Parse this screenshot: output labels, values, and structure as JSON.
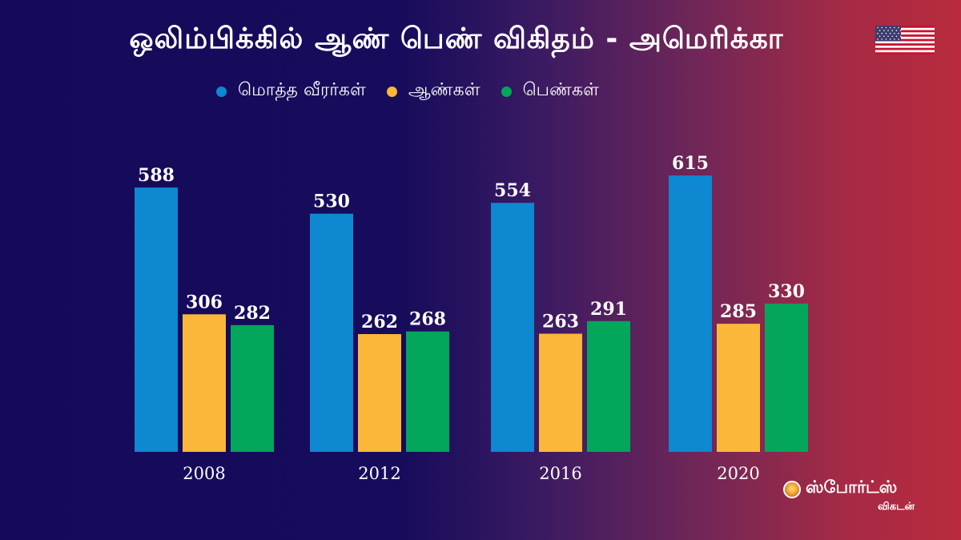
{
  "header": {
    "title": "ஒலிம்பிக்கில் ஆண் பெண் விகிதம் - அமெரிக்கா",
    "flag_icon": "usa-flag-icon"
  },
  "logo": {
    "brand": "ஸ்போர்ட்ஸ்",
    "brand_sub": "விகடன்"
  },
  "chart_data": {
    "type": "bar",
    "title": "ஒலிம்பிக்கில் ஆண் பெண் விகிதம் - அமெரிக்கா",
    "categories": [
      "2008",
      "2012",
      "2016",
      "2020"
    ],
    "series": [
      {
        "name": "மொத்த வீரர்கள்",
        "color": "#0d88d1",
        "values": [
          588,
          530,
          554,
          615
        ]
      },
      {
        "name": "ஆண்கள்",
        "color": "#fbb739",
        "values": [
          306,
          262,
          263,
          285
        ]
      },
      {
        "name": "பெண்கள்",
        "color": "#03a65a",
        "values": [
          282,
          268,
          291,
          330
        ]
      }
    ],
    "xlabel": "",
    "ylabel": "",
    "ylim": [
      0,
      615
    ],
    "grid": false,
    "legend": "top-left"
  }
}
